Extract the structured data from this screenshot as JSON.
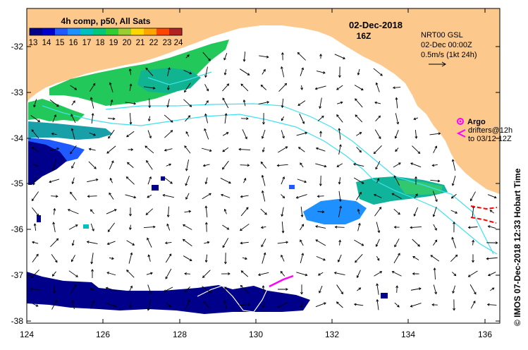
{
  "colorbar": {
    "title": "4h comp, p50, All Sats",
    "labels": [
      "13",
      "14",
      "15",
      "16",
      "17",
      "18",
      "19",
      "20",
      "21",
      "22",
      "23",
      "24"
    ],
    "colors": [
      "#00008b",
      "#0000cd",
      "#1e5aff",
      "#1e90ff",
      "#00bfbf",
      "#00c878",
      "#32cd32",
      "#9acd32",
      "#ffd700",
      "#ffa500",
      "#ff4500",
      "#b22222"
    ]
  },
  "date": "02-Dec-2018",
  "time": "16Z",
  "nrt": {
    "line1": "NRT00 GSL",
    "line2": "02-Dec 00:00Z",
    "line3": "0.5m/s (1kt 24h)"
  },
  "legend": {
    "argo": "Argo",
    "drifters_line1": "drifters@12h",
    "drifters_line2": "to 03/12 12Z"
  },
  "credit": "© IMOS 07-Dec-2018 12:33 Hobart Time",
  "axes": {
    "x_ticks": [
      "124",
      "126",
      "128",
      "130",
      "132",
      "134",
      "136"
    ],
    "y_ticks": [
      "-32",
      "-33",
      "-34",
      "-35",
      "-36",
      "-37",
      "-38"
    ]
  },
  "colors": {
    "land": "#fcc88c",
    "current_contour": "#40e0f0",
    "drifter": "#ff00ff",
    "track_red": "#ff0000"
  }
}
